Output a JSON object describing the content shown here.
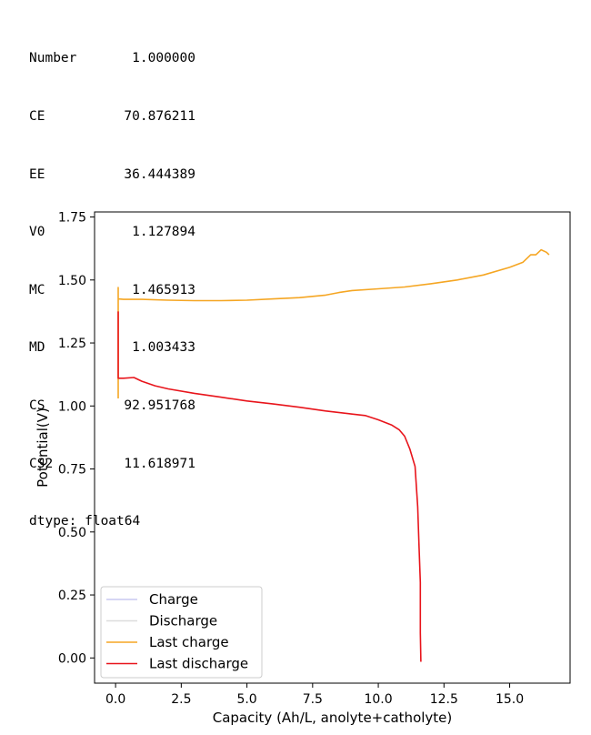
{
  "output": {
    "rows": [
      {
        "key": "Number",
        "value": "1.000000"
      },
      {
        "key": "CE",
        "value": "70.876211"
      },
      {
        "key": "EE",
        "value": "36.444389"
      },
      {
        "key": "V0",
        "value": "1.127894"
      },
      {
        "key": "MC",
        "value": "1.465913"
      },
      {
        "key": "MD",
        "value": "1.003433"
      },
      {
        "key": "CS",
        "value": "92.951768"
      },
      {
        "key": "CS2",
        "value": "11.618971"
      }
    ],
    "dtype": "dtype: float64"
  },
  "chart_data": {
    "type": "line",
    "title": "",
    "xlabel": "Capacity (Ah/L, anolyte+catholyte)",
    "ylabel": "Potential(V)",
    "xlim": [
      -0.8,
      17.3
    ],
    "ylim": [
      -0.1,
      1.77
    ],
    "xticks": [
      0.0,
      2.5,
      5.0,
      7.5,
      10.0,
      12.5,
      15.0
    ],
    "xtick_labels": [
      "0.0",
      "2.5",
      "5.0",
      "7.5",
      "10.0",
      "12.5",
      "15.0"
    ],
    "yticks": [
      0.0,
      0.25,
      0.5,
      0.75,
      1.0,
      1.25,
      1.5,
      1.75
    ],
    "ytick_labels": [
      "0.00",
      "0.25",
      "0.50",
      "0.75",
      "1.00",
      "1.25",
      "1.50",
      "1.75"
    ],
    "grid": false,
    "legend_position": "lower-left",
    "series": [
      {
        "name": "Charge",
        "color": "#c9c9f0",
        "x": [],
        "y": []
      },
      {
        "name": "Discharge",
        "color": "#dddddd",
        "x": [],
        "y": []
      },
      {
        "name": "Last charge",
        "color": "#f5a623",
        "x": [
          0.1,
          0.1,
          0.1,
          0.1,
          0.3,
          1.0,
          2.0,
          3.0,
          4.0,
          5.0,
          6.0,
          7.0,
          7.5,
          8.0,
          8.5,
          9.0,
          10.0,
          11.0,
          12.0,
          13.0,
          14.0,
          15.0,
          15.5,
          15.8,
          16.0,
          16.2,
          16.4,
          16.5
        ],
        "y": [
          1.03,
          1.47,
          1.43,
          1.425,
          1.423,
          1.423,
          1.42,
          1.418,
          1.418,
          1.42,
          1.425,
          1.43,
          1.435,
          1.44,
          1.45,
          1.458,
          1.465,
          1.472,
          1.485,
          1.5,
          1.52,
          1.55,
          1.57,
          1.6,
          1.6,
          1.62,
          1.61,
          1.6
        ]
      },
      {
        "name": "Last discharge",
        "color": "#e8141b",
        "x": [
          0.1,
          0.1,
          0.1,
          0.3,
          0.7,
          1.0,
          1.5,
          2.0,
          3.0,
          4.0,
          5.0,
          6.0,
          7.0,
          8.0,
          9.0,
          9.5,
          10.0,
          10.5,
          10.8,
          11.0,
          11.2,
          11.4,
          11.5,
          11.55,
          11.6,
          11.6,
          11.62
        ],
        "y": [
          1.375,
          1.11,
          1.11,
          1.11,
          1.113,
          1.098,
          1.08,
          1.068,
          1.05,
          1.035,
          1.02,
          1.008,
          0.995,
          0.98,
          0.968,
          0.962,
          0.945,
          0.925,
          0.905,
          0.88,
          0.83,
          0.76,
          0.6,
          0.44,
          0.3,
          0.1,
          -0.015
        ]
      }
    ]
  }
}
